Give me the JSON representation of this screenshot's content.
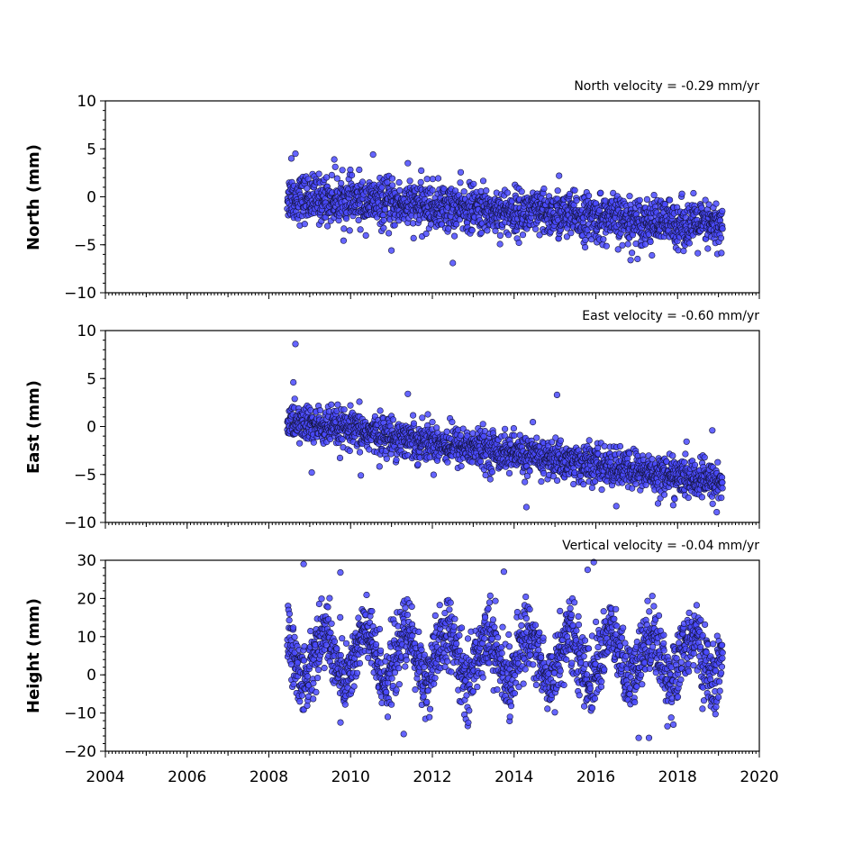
{
  "chart_data": [
    {
      "type": "scatter",
      "panel": "north",
      "title": "North velocity = -0.29 mm/yr",
      "ylabel": "North (mm)",
      "xlim": [
        2004,
        2020
      ],
      "ylim": [
        -10,
        10
      ],
      "yticks": [
        -10,
        -5,
        0,
        5,
        10
      ],
      "ytick_labels": [
        "−10",
        "−5",
        "0",
        "5",
        "10"
      ],
      "x_start": 2008.45,
      "x_end": 2019.1,
      "velocity_mm_per_yr": -0.29,
      "start_level_mm": 0.0,
      "scatter_sd_mm": 1.2,
      "outliers": [
        {
          "x": 2008.65,
          "y": 4.5
        },
        {
          "x": 2010.55,
          "y": 4.4
        },
        {
          "x": 2009.6,
          "y": 3.9
        },
        {
          "x": 2011.4,
          "y": 3.5
        },
        {
          "x": 2008.55,
          "y": 4.0
        },
        {
          "x": 2012.5,
          "y": -6.9
        },
        {
          "x": 2011.0,
          "y": -5.6
        },
        {
          "x": 2016.85,
          "y": -6.6
        },
        {
          "x": 2015.1,
          "y": 2.2
        }
      ]
    },
    {
      "type": "scatter",
      "panel": "east",
      "title": "East velocity = -0.60 mm/yr",
      "ylabel": "East (mm)",
      "xlim": [
        2004,
        2020
      ],
      "ylim": [
        -10,
        10
      ],
      "yticks": [
        -10,
        -5,
        0,
        5,
        10
      ],
      "ytick_labels": [
        "−10",
        "−5",
        "0",
        "5",
        "10"
      ],
      "x_start": 2008.45,
      "x_end": 2019.1,
      "velocity_mm_per_yr": -0.6,
      "start_level_mm": 0.5,
      "scatter_sd_mm": 1.0,
      "outliers": [
        {
          "x": 2008.65,
          "y": 8.6
        },
        {
          "x": 2008.6,
          "y": 4.6
        },
        {
          "x": 2015.05,
          "y": 3.3
        },
        {
          "x": 2011.4,
          "y": 3.4
        },
        {
          "x": 2018.85,
          "y": -0.4
        },
        {
          "x": 2009.05,
          "y": -4.8
        },
        {
          "x": 2010.25,
          "y": -5.1
        },
        {
          "x": 2014.3,
          "y": -8.4
        },
        {
          "x": 2016.5,
          "y": -8.3
        }
      ]
    },
    {
      "type": "scatter",
      "panel": "height",
      "title": "Vertical velocity = -0.04 mm/yr",
      "ylabel": "Height (mm)",
      "xlim": [
        2004,
        2020
      ],
      "ylim": [
        -20,
        30
      ],
      "yticks": [
        -20,
        -10,
        0,
        10,
        20,
        30
      ],
      "ytick_labels": [
        "−20",
        "−10",
        "0",
        "10",
        "20",
        "30"
      ],
      "xticks": [
        2004,
        2006,
        2008,
        2010,
        2012,
        2014,
        2016,
        2018,
        2020
      ],
      "xtick_labels": [
        "2004",
        "2006",
        "2008",
        "2010",
        "2012",
        "2014",
        "2016",
        "2018",
        "2020"
      ],
      "x_start": 2008.45,
      "x_end": 2019.1,
      "velocity_mm_per_yr": -0.04,
      "start_level_mm": 5.0,
      "seasonal_amplitude_mm": 6.0,
      "scatter_sd_mm": 4.5,
      "outliers": [
        {
          "x": 2008.85,
          "y": 29.0
        },
        {
          "x": 2015.95,
          "y": 29.5
        },
        {
          "x": 2013.75,
          "y": 27.0
        },
        {
          "x": 2009.75,
          "y": 26.8
        },
        {
          "x": 2015.8,
          "y": 27.5
        },
        {
          "x": 2011.3,
          "y": -15.5
        },
        {
          "x": 2017.05,
          "y": -16.5
        },
        {
          "x": 2017.3,
          "y": -16.5
        },
        {
          "x": 2013.9,
          "y": -11.0
        }
      ]
    }
  ],
  "colors": {
    "marker_fill": "#4a4aff",
    "marker_edge": "#14143c",
    "axis": "#000000"
  }
}
